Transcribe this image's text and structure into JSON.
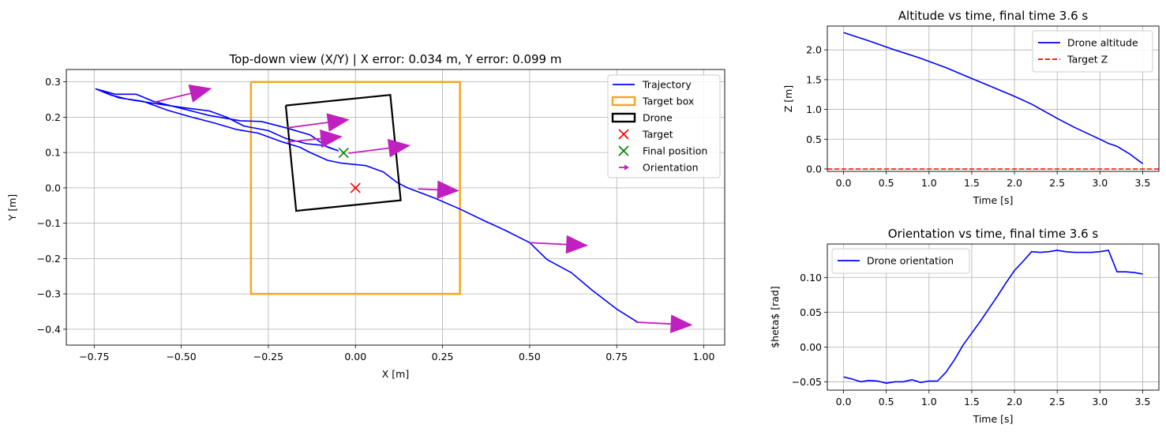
{
  "chart_data": [
    {
      "type": "line",
      "title": "Top-down view (X/Y) | X error: 0.034 m, Y error: 0.099 m",
      "xlabel": "X [m]",
      "ylabel": "Y [m]",
      "xlim": [
        -0.83,
        1.06
      ],
      "ylim": [
        -0.445,
        0.335
      ],
      "xticks": [
        -0.75,
        -0.5,
        -0.25,
        0.0,
        0.25,
        0.5,
        0.75,
        1.0
      ],
      "xtick_labels": [
        "−0.75",
        "−0.50",
        "−0.25",
        "0.00",
        "0.25",
        "0.50",
        "0.75",
        "1.00"
      ],
      "yticks": [
        -0.4,
        -0.3,
        -0.2,
        -0.1,
        0.0,
        0.1,
        0.2,
        0.3
      ],
      "ytick_labels": [
        "−0.4",
        "−0.3",
        "−0.2",
        "−0.1",
        "0.0",
        "0.1",
        "0.2",
        "0.3"
      ],
      "grid": true,
      "legend_position": "upper-right",
      "legend": [
        "Trajectory",
        "Target box",
        "Drone",
        "Target",
        "Final position",
        "Orientation"
      ],
      "trajectory": {
        "name": "Trajectory",
        "color": "#0000ff",
        "x": [
          -0.745,
          -0.69,
          -0.63,
          -0.58,
          -0.5,
          -0.42,
          -0.33,
          -0.27,
          -0.2,
          -0.13,
          -0.08,
          -0.05,
          -0.09,
          -0.14,
          -0.2,
          -0.25,
          -0.32,
          -0.37,
          -0.42,
          -0.5,
          -0.57,
          -0.65,
          -0.7,
          -0.745,
          -0.68,
          -0.61,
          -0.54,
          -0.47,
          -0.41,
          -0.34,
          -0.28,
          -0.21,
          -0.16,
          -0.13,
          -0.08,
          -0.04,
          0.03,
          0.08,
          0.12,
          0.15,
          0.23,
          0.3,
          0.37,
          0.43,
          0.5,
          0.55,
          0.62,
          0.68,
          0.75,
          0.81
        ],
        "y": [
          0.28,
          0.265,
          0.265,
          0.245,
          0.225,
          0.205,
          0.19,
          0.188,
          0.17,
          0.15,
          0.115,
          0.105,
          0.12,
          0.125,
          0.14,
          0.162,
          0.175,
          0.2,
          0.218,
          0.228,
          0.238,
          0.25,
          0.262,
          0.28,
          0.255,
          0.245,
          0.22,
          0.2,
          0.185,
          0.165,
          0.155,
          0.13,
          0.115,
          0.1,
          0.078,
          0.07,
          0.063,
          0.045,
          0.015,
          0.0,
          -0.03,
          -0.06,
          -0.093,
          -0.12,
          -0.155,
          -0.203,
          -0.24,
          -0.29,
          -0.343,
          -0.38
        ]
      },
      "target_box": {
        "name": "Target box",
        "color": "#f5a623",
        "x": [
          -0.3,
          0.3,
          0.3,
          -0.3,
          -0.3
        ],
        "y": [
          0.3,
          0.3,
          -0.3,
          -0.3,
          0.3
        ]
      },
      "drone_box": {
        "name": "Drone",
        "color": "#000000",
        "x": [
          -0.2,
          0.1,
          0.13,
          -0.17,
          -0.2
        ],
        "y": [
          0.233,
          0.263,
          -0.035,
          -0.065,
          0.233
        ]
      },
      "target": {
        "name": "Target",
        "color": "#ff0000",
        "x": 0.0,
        "y": 0.0
      },
      "final_position": {
        "name": "Final position",
        "color": "#008000",
        "x": -0.034,
        "y": 0.099
      },
      "orientation_arrows": {
        "name": "Orientation",
        "color": "#c020c0",
        "x": [
          -0.575,
          -0.195,
          -0.195,
          -0.02,
          0.18,
          0.5,
          0.805
        ],
        "y": [
          0.243,
          0.17,
          0.13,
          0.098,
          -0.003,
          -0.155,
          -0.38
        ],
        "dx": [
          0.16,
          0.175,
          0.155,
          0.175,
          0.115,
          0.165,
          0.16
        ],
        "dy": [
          0.038,
          0.023,
          0.015,
          0.022,
          -0.005,
          -0.008,
          -0.008
        ]
      }
    },
    {
      "type": "line",
      "title": "Altitude vs time, final time 3.6 s",
      "xlabel": "Time [s]",
      "ylabel": "Z [m]",
      "xlim": [
        -0.19,
        3.69
      ],
      "ylim": [
        -0.04,
        2.4
      ],
      "xticks": [
        0.0,
        0.5,
        1.0,
        1.5,
        2.0,
        2.5,
        3.0,
        3.5
      ],
      "xtick_labels": [
        "0.0",
        "0.5",
        "1.0",
        "1.5",
        "2.0",
        "2.5",
        "3.0",
        "3.5"
      ],
      "yticks": [
        0.0,
        0.5,
        1.0,
        1.5,
        2.0
      ],
      "ytick_labels": [
        "0.0",
        "0.5",
        "1.0",
        "1.5",
        "2.0"
      ],
      "grid": true,
      "legend_position": "upper-right",
      "series": [
        {
          "name": "Drone altitude",
          "color": "#0000ff",
          "style": "solid",
          "x": [
            0.0,
            0.3,
            0.6,
            0.9,
            1.2,
            1.5,
            1.8,
            2.0,
            2.2,
            2.5,
            2.7,
            3.0,
            3.1,
            3.2,
            3.35,
            3.5
          ],
          "y": [
            2.29,
            2.15,
            2.0,
            1.86,
            1.7,
            1.52,
            1.34,
            1.22,
            1.09,
            0.85,
            0.7,
            0.5,
            0.43,
            0.38,
            0.25,
            0.09
          ]
        },
        {
          "name": "Target Z",
          "color": "#ff0000",
          "style": "dashed",
          "x": [
            -0.19,
            3.69
          ],
          "y": [
            0.0,
            0.0
          ]
        }
      ]
    },
    {
      "type": "line",
      "title": "Orientation vs time, final time 3.6 s",
      "xlabel": "Time [s]",
      "ylabel": "$heta$ [rad]",
      "xlim": [
        -0.19,
        3.69
      ],
      "ylim": [
        -0.062,
        0.148
      ],
      "xticks": [
        0.0,
        0.5,
        1.0,
        1.5,
        2.0,
        2.5,
        3.0,
        3.5
      ],
      "xtick_labels": [
        "0.0",
        "0.5",
        "1.0",
        "1.5",
        "2.0",
        "2.5",
        "3.0",
        "3.5"
      ],
      "yticks": [
        -0.05,
        0.0,
        0.05,
        0.1
      ],
      "ytick_labels": [
        "−0.05",
        "0.00",
        "0.05",
        "0.10"
      ],
      "grid": true,
      "legend_position": "upper-left",
      "series": [
        {
          "name": "Drone orientation",
          "color": "#0000ff",
          "style": "solid",
          "x": [
            0.0,
            0.1,
            0.2,
            0.3,
            0.4,
            0.5,
            0.6,
            0.7,
            0.8,
            0.9,
            1.0,
            1.1,
            1.2,
            1.3,
            1.4,
            1.5,
            1.6,
            1.7,
            1.8,
            1.9,
            2.0,
            2.1,
            2.2,
            2.3,
            2.4,
            2.5,
            2.6,
            2.7,
            2.8,
            2.9,
            3.0,
            3.1,
            3.2,
            3.3,
            3.4,
            3.5
          ],
          "y": [
            -0.043,
            -0.046,
            -0.05,
            -0.048,
            -0.049,
            -0.052,
            -0.05,
            -0.05,
            -0.047,
            -0.051,
            -0.049,
            -0.049,
            -0.036,
            -0.018,
            0.003,
            0.02,
            0.037,
            0.055,
            0.073,
            0.092,
            0.11,
            0.123,
            0.137,
            0.136,
            0.137,
            0.139,
            0.137,
            0.136,
            0.136,
            0.136,
            0.137,
            0.139,
            0.108,
            0.108,
            0.107,
            0.105
          ]
        }
      ]
    }
  ]
}
